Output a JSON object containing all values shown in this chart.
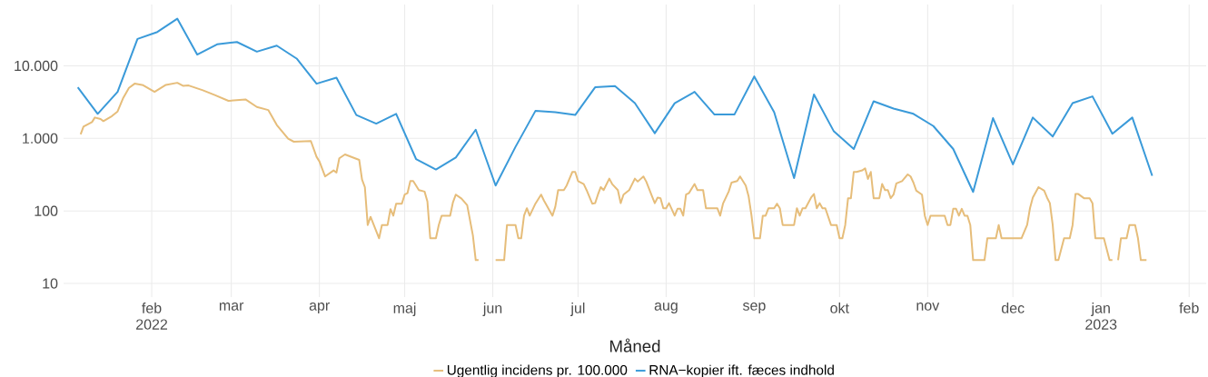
{
  "chart_data": {
    "type": "line",
    "xlabel": "Måned",
    "log": true,
    "grid": true,
    "legend": "bottom",
    "xlim": [
      "2022-01-01",
      "2023-02-07"
    ],
    "ylim": [
      6.5,
      70000
    ],
    "xticks": [
      {
        "value": "2022-02-01",
        "label": "feb 2022"
      },
      {
        "value": "2022-03-01",
        "label": "mar"
      },
      {
        "value": "2022-04-01",
        "label": "apr"
      },
      {
        "value": "2022-05-01",
        "label": "maj"
      },
      {
        "value": "2022-06-01",
        "label": "jun"
      },
      {
        "value": "2022-07-01",
        "label": "jul"
      },
      {
        "value": "2022-08-01",
        "label": "aug"
      },
      {
        "value": "2022-09-01",
        "label": "sep"
      },
      {
        "value": "2022-10-01",
        "label": "okt"
      },
      {
        "value": "2022-11-01",
        "label": "nov"
      },
      {
        "value": "2022-12-01",
        "label": "dec"
      },
      {
        "value": "2023-01-01",
        "label": "jan 2023"
      },
      {
        "value": "2023-02-01",
        "label": "feb"
      }
    ],
    "yticks": [
      10,
      100,
      {
        "value": 1000,
        "label": "1.000"
      },
      {
        "value": 10000,
        "label": "10.000"
      }
    ],
    "series": [
      {
        "name": "Ugentlig incidens pr. 100.000",
        "color": "#e6bd7a",
        "x": [
          "2022-01-07",
          "2022-01-08",
          "2022-01-11",
          "2022-01-12",
          "2022-01-14",
          "2022-01-15",
          "2022-01-18",
          "2022-01-20",
          "2022-01-22",
          "2022-01-24",
          "2022-01-26",
          "2022-01-29",
          "2022-02-02",
          "2022-02-06",
          "2022-02-10",
          "2022-02-12",
          "2022-02-14",
          "2022-02-19",
          "2022-02-23",
          "2022-02-28",
          "2022-03-06",
          "2022-03-10",
          "2022-03-14",
          "2022-03-17",
          "2022-03-21",
          "2022-03-23",
          "2022-03-29",
          "2022-03-31",
          "2022-04-01",
          "2022-04-03",
          "2022-04-06",
          "2022-04-07",
          "2022-04-08",
          "2022-04-10",
          "2022-04-15",
          "2022-04-16",
          "2022-04-17",
          "2022-04-18",
          "2022-04-19",
          "2022-04-22",
          "2022-04-23",
          "2022-04-25",
          "2022-04-26",
          "2022-04-27",
          "2022-04-28",
          "2022-04-30",
          "2022-05-01",
          "2022-05-02",
          "2022-05-03",
          "2022-05-04",
          "2022-05-06",
          "2022-05-08",
          "2022-05-09",
          "2022-05-10",
          "2022-05-12",
          "2022-05-13",
          "2022-05-14",
          "2022-05-17",
          "2022-05-18",
          "2022-05-19",
          "2022-05-21",
          "2022-05-23",
          "2022-05-25",
          "2022-05-26",
          "2022-05-27",
          "2022-05-28",
          "2022-06-01",
          "2022-06-02",
          "2022-06-05",
          "2022-06-06",
          "2022-06-09",
          "2022-06-10",
          "2022-06-11",
          "2022-06-12",
          "2022-06-13",
          "2022-06-14",
          "2022-06-16",
          "2022-06-18",
          "2022-06-19",
          "2022-06-22",
          "2022-06-23",
          "2022-06-24",
          "2022-06-26",
          "2022-06-27",
          "2022-06-29",
          "2022-06-30",
          "2022-07-01",
          "2022-07-03",
          "2022-07-04",
          "2022-07-06",
          "2022-07-07",
          "2022-07-08",
          "2022-07-09",
          "2022-07-10",
          "2022-07-12",
          "2022-07-13",
          "2022-07-15",
          "2022-07-16",
          "2022-07-17",
          "2022-07-19",
          "2022-07-21",
          "2022-07-22",
          "2022-07-24",
          "2022-07-25",
          "2022-07-27",
          "2022-07-28",
          "2022-07-29",
          "2022-07-30",
          "2022-07-31",
          "2022-08-01",
          "2022-08-02",
          "2022-08-04",
          "2022-08-05",
          "2022-08-06",
          "2022-08-07",
          "2022-08-08",
          "2022-08-09",
          "2022-08-11",
          "2022-08-12",
          "2022-08-14",
          "2022-08-15",
          "2022-08-19",
          "2022-08-20",
          "2022-08-21",
          "2022-08-23",
          "2022-08-24",
          "2022-08-26",
          "2022-08-27",
          "2022-08-29",
          "2022-08-30",
          "2022-08-31",
          "2022-09-01",
          "2022-09-03",
          "2022-09-04",
          "2022-09-05",
          "2022-09-06",
          "2022-09-08",
          "2022-09-09",
          "2022-09-10",
          "2022-09-11",
          "2022-09-15",
          "2022-09-16",
          "2022-09-17",
          "2022-09-18",
          "2022-09-19",
          "2022-09-21",
          "2022-09-22",
          "2022-09-23",
          "2022-09-24",
          "2022-09-25",
          "2022-09-26",
          "2022-09-28",
          "2022-09-30",
          "2022-10-01",
          "2022-10-02",
          "2022-10-03",
          "2022-10-04",
          "2022-10-05",
          "2022-10-06",
          "2022-10-07",
          "2022-10-09",
          "2022-10-10",
          "2022-10-11",
          "2022-10-12",
          "2022-10-13",
          "2022-10-15",
          "2022-10-16",
          "2022-10-17",
          "2022-10-18",
          "2022-10-19",
          "2022-10-20",
          "2022-10-21",
          "2022-10-23",
          "2022-10-25",
          "2022-10-26",
          "2022-10-27",
          "2022-10-28",
          "2022-10-30",
          "2022-10-31",
          "2022-11-01",
          "2022-11-02",
          "2022-11-07",
          "2022-11-08",
          "2022-11-09",
          "2022-11-10",
          "2022-11-11",
          "2022-11-12",
          "2022-11-13",
          "2022-11-14",
          "2022-11-15",
          "2022-11-16",
          "2022-11-17",
          "2022-11-21",
          "2022-11-22",
          "2022-11-25",
          "2022-11-26",
          "2022-11-27",
          "2022-12-04",
          "2022-12-06",
          "2022-12-07",
          "2022-12-08",
          "2022-12-10",
          "2022-12-12",
          "2022-12-13",
          "2022-12-14",
          "2022-12-15",
          "2022-12-16",
          "2022-12-17",
          "2022-12-19",
          "2022-12-21",
          "2022-12-22",
          "2022-12-23",
          "2022-12-24",
          "2022-12-26",
          "2022-12-28",
          "2022-12-29",
          "2022-12-30",
          "2023-01-02",
          "2023-01-04",
          "2023-01-05",
          "2023-01-06",
          "2023-01-07",
          "2023-01-08",
          "2023-01-10",
          "2023-01-11",
          "2023-01-13",
          "2023-01-14",
          "2023-01-15",
          "2023-01-17"
        ],
        "values": [
          1140,
          1450,
          1680,
          1940,
          1850,
          1730,
          2030,
          2350,
          3620,
          4970,
          5680,
          5410,
          4380,
          5460,
          5840,
          5310,
          5360,
          4600,
          3980,
          3290,
          3450,
          2710,
          2460,
          1530,
          990,
          900,
          920,
          557,
          482,
          299,
          362,
          338,
          531,
          601,
          506,
          271,
          213,
          64,
          83,
          42,
          64,
          64,
          106,
          86,
          126,
          126,
          168,
          176,
          258,
          258,
          194,
          185,
          135,
          42,
          42,
          64,
          86,
          86,
          132,
          168,
          148,
          120,
          46,
          21,
          21,
          null,
          null,
          21,
          21,
          64,
          64,
          42,
          42,
          86,
          109,
          86,
          126,
          168,
          139,
          86,
          114,
          194,
          194,
          224,
          345,
          345,
          258,
          235,
          194,
          126,
          128,
          168,
          213,
          194,
          279,
          235,
          194,
          128,
          168,
          194,
          279,
          254,
          299,
          254,
          160,
          128,
          153,
          150,
          109,
          109,
          128,
          86,
          107,
          107,
          86,
          168,
          176,
          235,
          194,
          194,
          109,
          109,
          86,
          126,
          185,
          246,
          258,
          299,
          224,
          160,
          88,
          42,
          42,
          86,
          86,
          109,
          109,
          126,
          109,
          64,
          64,
          109,
          86,
          109,
          109,
          153,
          171,
          109,
          128,
          109,
          109,
          64,
          64,
          42,
          42,
          64,
          150,
          150,
          345,
          345,
          362,
          387,
          276,
          345,
          150,
          150,
          235,
          194,
          194,
          150,
          168,
          240,
          258,
          319,
          299,
          246,
          190,
          168,
          86,
          64,
          86,
          86,
          64,
          64,
          107,
          107,
          86,
          107,
          86,
          86,
          64,
          21,
          21,
          42,
          42,
          64,
          42,
          42,
          64,
          109,
          153,
          213,
          190,
          153,
          128,
          64,
          21,
          21,
          42,
          42,
          64,
          171,
          171,
          150,
          150,
          128,
          42,
          42,
          21,
          21,
          null,
          21,
          42,
          42,
          64,
          64,
          42,
          21,
          21
        ]
      },
      {
        "name": "RNA−kopier ift. fæces indhold",
        "color": "#3a9ad9",
        "x": [
          "2022-01-06",
          "2022-01-13",
          "2022-01-20",
          "2022-01-27",
          "2022-02-03",
          "2022-02-10",
          "2022-02-17",
          "2022-02-24",
          "2022-03-03",
          "2022-03-10",
          "2022-03-17",
          "2022-03-24",
          "2022-03-31",
          "2022-04-07",
          "2022-04-14",
          "2022-04-21",
          "2022-04-28",
          "2022-05-05",
          "2022-05-12",
          "2022-05-19",
          "2022-05-26",
          "2022-06-02",
          "2022-06-09",
          "2022-06-16",
          "2022-06-23",
          "2022-06-30",
          "2022-07-07",
          "2022-07-14",
          "2022-07-21",
          "2022-07-28",
          "2022-08-04",
          "2022-08-11",
          "2022-08-18",
          "2022-08-25",
          "2022-09-01",
          "2022-09-08",
          "2022-09-15",
          "2022-09-22",
          "2022-09-29",
          "2022-10-06",
          "2022-10-13",
          "2022-10-20",
          "2022-10-27",
          "2022-11-03",
          "2022-11-10",
          "2022-11-17",
          "2022-11-24",
          "2022-12-01",
          "2022-12-08",
          "2022-12-15",
          "2022-12-22",
          "2022-12-29",
          "2023-01-05",
          "2023-01-12",
          "2023-01-19"
        ],
        "values": [
          5060,
          2180,
          4380,
          23500,
          29300,
          44700,
          14300,
          19800,
          21300,
          15700,
          19000,
          12600,
          5670,
          6880,
          2100,
          1600,
          2180,
          520,
          373,
          546,
          1320,
          224,
          765,
          2390,
          2290,
          2100,
          5060,
          5260,
          3070,
          1180,
          3050,
          4380,
          2130,
          2130,
          7140,
          2300,
          284,
          4020,
          1250,
          714,
          3250,
          2580,
          2180,
          1480,
          714,
          183,
          1900,
          438,
          1940,
          1060,
          3070,
          3790,
          1160,
          1940,
          305
        ]
      }
    ]
  }
}
